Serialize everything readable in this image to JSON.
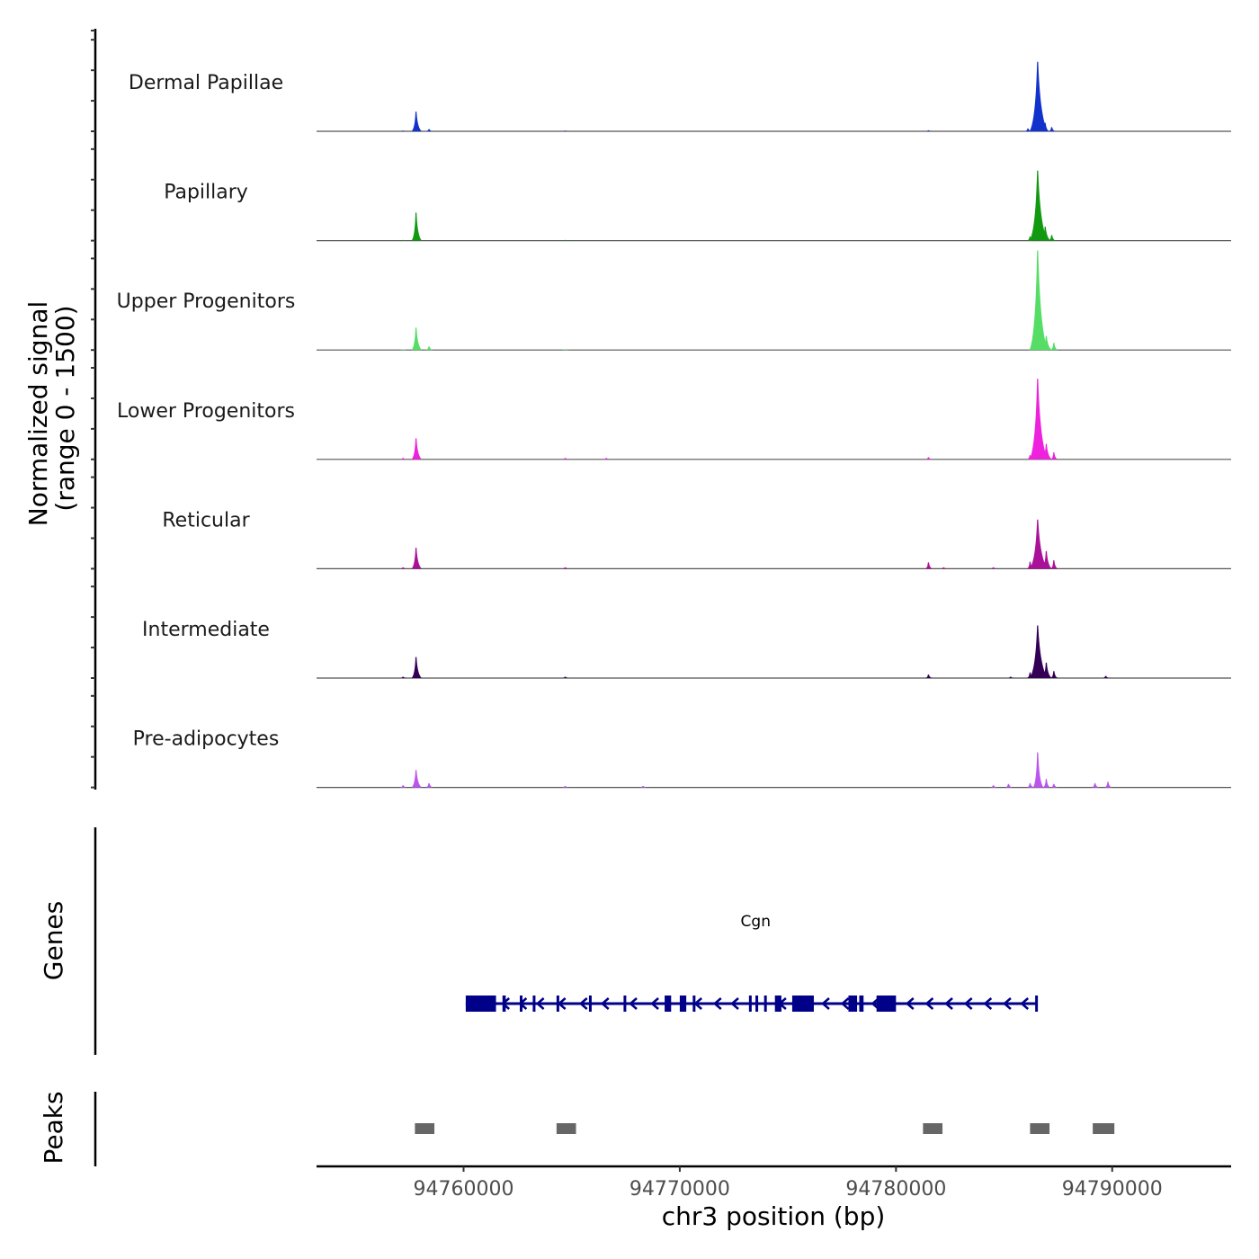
{
  "chart_data": {
    "type": "area",
    "chromosome": "chr3",
    "xlabel": "chr3 position (bp)",
    "ylabel_line1": "Normalized signal",
    "ylabel_line2": "(range 0 - 1500)",
    "ylim": [
      0,
      1500
    ],
    "xlim": [
      94753200,
      94795500
    ],
    "x_ticks": [
      94760000,
      94770000,
      94780000,
      94790000
    ],
    "x_tick_labels": [
      "94760000",
      "94770000",
      "94780000",
      "94790000"
    ],
    "peak_height_scale": "fraction of 1500",
    "tracks": [
      {
        "name": "Dermal Papillae",
        "color": "#1133cc",
        "peaks": [
          [
            94757200,
            0.01
          ],
          [
            94757800,
            0.28
          ],
          [
            94758400,
            0.03
          ],
          [
            94764700,
            0.01
          ],
          [
            94781500,
            0.015
          ],
          [
            94786100,
            0.04
          ],
          [
            94786550,
            0.99
          ],
          [
            94786900,
            0.12
          ],
          [
            94787200,
            0.06
          ]
        ]
      },
      {
        "name": "Papillary",
        "color": "#119911",
        "peaks": [
          [
            94757200,
            0.01
          ],
          [
            94757800,
            0.4
          ],
          [
            94764700,
            0.01
          ],
          [
            94786200,
            0.06
          ],
          [
            94786550,
            1.0
          ],
          [
            94786900,
            0.2
          ],
          [
            94787200,
            0.08
          ]
        ]
      },
      {
        "name": "Upper Progenitors",
        "color": "#55dd66",
        "peaks": [
          [
            94757200,
            0.01
          ],
          [
            94757800,
            0.32
          ],
          [
            94758400,
            0.05
          ],
          [
            94764700,
            0.01
          ],
          [
            94786550,
            1.42
          ],
          [
            94786950,
            0.2
          ],
          [
            94787300,
            0.1
          ]
        ]
      },
      {
        "name": "Lower Progenitors",
        "color": "#ee22dd",
        "peaks": [
          [
            94757200,
            0.02
          ],
          [
            94757800,
            0.3
          ],
          [
            94764700,
            0.02
          ],
          [
            94766600,
            0.02
          ],
          [
            94781500,
            0.03
          ],
          [
            94786200,
            0.06
          ],
          [
            94786550,
            1.15
          ],
          [
            94786950,
            0.22
          ],
          [
            94787300,
            0.1
          ]
        ]
      },
      {
        "name": "Reticular",
        "color": "#aa1199",
        "peaks": [
          [
            94757200,
            0.02
          ],
          [
            94757800,
            0.3
          ],
          [
            94764700,
            0.02
          ],
          [
            94781500,
            0.09
          ],
          [
            94782200,
            0.02
          ],
          [
            94784500,
            0.02
          ],
          [
            94786200,
            0.1
          ],
          [
            94786550,
            0.7
          ],
          [
            94786950,
            0.25
          ],
          [
            94787300,
            0.12
          ]
        ]
      },
      {
        "name": "Intermediate",
        "color": "#330055",
        "peaks": [
          [
            94757200,
            0.02
          ],
          [
            94757800,
            0.3
          ],
          [
            94764700,
            0.02
          ],
          [
            94781500,
            0.05
          ],
          [
            94785300,
            0.02
          ],
          [
            94786200,
            0.08
          ],
          [
            94786550,
            0.75
          ],
          [
            94786950,
            0.22
          ],
          [
            94787300,
            0.1
          ],
          [
            94789700,
            0.03
          ]
        ]
      },
      {
        "name": "Pre-adipocytes",
        "color": "#bb55ee",
        "peaks": [
          [
            94757200,
            0.03
          ],
          [
            94757800,
            0.25
          ],
          [
            94758400,
            0.06
          ],
          [
            94764700,
            0.02
          ],
          [
            94768300,
            0.02
          ],
          [
            94784500,
            0.03
          ],
          [
            94785200,
            0.05
          ],
          [
            94786200,
            0.06
          ],
          [
            94786550,
            0.5
          ],
          [
            94786950,
            0.12
          ],
          [
            94787300,
            0.05
          ],
          [
            94789200,
            0.06
          ],
          [
            94789800,
            0.08
          ]
        ]
      }
    ],
    "gene_track": {
      "title": "Genes",
      "color": "#000088",
      "gene_name": "Cgn",
      "strand": "-",
      "start": 94760100,
      "end": 94786500,
      "exons": [
        [
          94760100,
          94761500
        ],
        [
          94761800,
          94761950
        ],
        [
          94762600,
          94762700
        ],
        [
          94763200,
          94763300
        ],
        [
          94764300,
          94764400
        ],
        [
          94765800,
          94765900
        ],
        [
          94767400,
          94767500
        ],
        [
          94769300,
          94769600
        ],
        [
          94770000,
          94770300
        ],
        [
          94770600,
          94770700
        ],
        [
          94773200,
          94773300
        ],
        [
          94773500,
          94773600
        ],
        [
          94773900,
          94774000
        ],
        [
          94774400,
          94774700
        ],
        [
          94775200,
          94776200
        ],
        [
          94777800,
          94778200
        ],
        [
          94778300,
          94778500
        ],
        [
          94779100,
          94780000
        ]
      ],
      "arrows": [
        94761900,
        94762700,
        94763500,
        94764500,
        94765500,
        94766500,
        94767800,
        94768800,
        94770800,
        94771700,
        94772500,
        94774700,
        94776700,
        94777600,
        94779000,
        94780600,
        94781500,
        94782400,
        94783300,
        94784200,
        94785100,
        94785900
      ]
    },
    "peak_track": {
      "title": "Peaks",
      "color": "#666666",
      "regions": [
        [
          94757750,
          94758650
        ],
        [
          94764300,
          94765200
        ],
        [
          94781250,
          94782150
        ],
        [
          94786200,
          94787100
        ],
        [
          94789100,
          94790100
        ]
      ]
    }
  }
}
